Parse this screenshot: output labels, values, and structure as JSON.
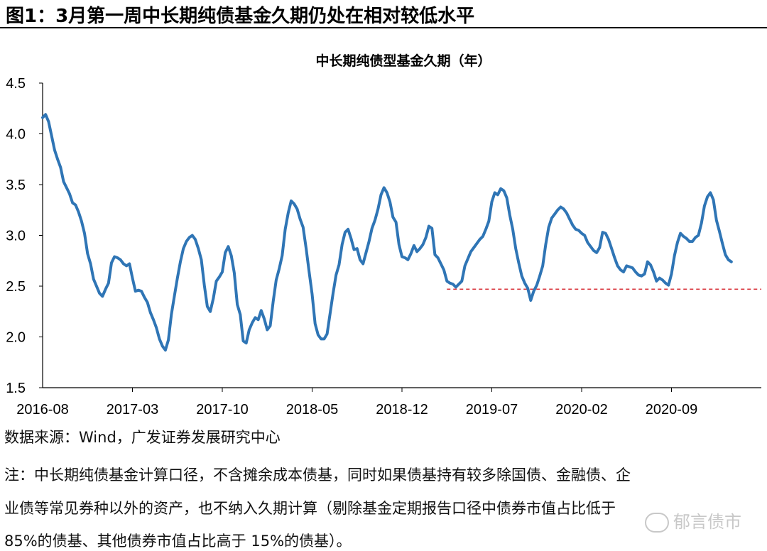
{
  "figure": {
    "title": "图1：3月第一周中长期纯债基金久期仍处在相对较低水平",
    "source": "数据来源：Wind，广发证券发展研究中心",
    "note_lines": [
      "注：中长期纯债基金计算口径，不含摊余成本债基，同时如果债基持有较多除国债、金融债、企",
      "业债等常见券种以外的资产，也不纳入久期计算（剔除基金定期报告口径中债券市值占比低于",
      "85%的债基、其他债券市值占比高于 15%的债基）。"
    ],
    "watermark": "郁言债市"
  },
  "chart_data": {
    "type": "line",
    "title": "中长期纯债型基金久期（年）",
    "xlabel": "",
    "ylabel": "",
    "ylim": [
      1.5,
      4.5
    ],
    "yticks": [
      "1.5",
      "2.0",
      "2.5",
      "3.0",
      "3.5",
      "4.0",
      "4.5"
    ],
    "x_tick_labels": [
      "2016-08",
      "2017-03",
      "2017-10",
      "2018-05",
      "2018-12",
      "2019-07",
      "2020-02",
      "2020-09"
    ],
    "x_range_weeks": [
      0,
      240
    ],
    "grid": false,
    "legend": "none",
    "series": [
      {
        "color": "#2f75b5",
        "points": [
          [
            0,
            4.16
          ],
          [
            1,
            4.19
          ],
          [
            2,
            4.12
          ],
          [
            3,
            3.98
          ],
          [
            4,
            3.84
          ],
          [
            5,
            3.75
          ],
          [
            6,
            3.67
          ],
          [
            7,
            3.53
          ],
          [
            8,
            3.47
          ],
          [
            9,
            3.41
          ],
          [
            10,
            3.32
          ],
          [
            11,
            3.3
          ],
          [
            12,
            3.23
          ],
          [
            13,
            3.14
          ],
          [
            14,
            3.02
          ],
          [
            15,
            2.82
          ],
          [
            16,
            2.72
          ],
          [
            17,
            2.57
          ],
          [
            18,
            2.5
          ],
          [
            19,
            2.43
          ],
          [
            20,
            2.4
          ],
          [
            21,
            2.47
          ],
          [
            22,
            2.53
          ],
          [
            23,
            2.73
          ],
          [
            24,
            2.79
          ],
          [
            25,
            2.78
          ],
          [
            26,
            2.76
          ],
          [
            27,
            2.72
          ],
          [
            28,
            2.7
          ],
          [
            29,
            2.72
          ],
          [
            30,
            2.58
          ],
          [
            31,
            2.45
          ],
          [
            32,
            2.46
          ],
          [
            33,
            2.45
          ],
          [
            34,
            2.39
          ],
          [
            35,
            2.34
          ],
          [
            36,
            2.24
          ],
          [
            37,
            2.17
          ],
          [
            38,
            2.09
          ],
          [
            39,
            1.98
          ],
          [
            40,
            1.91
          ],
          [
            41,
            1.87
          ],
          [
            42,
            1.97
          ],
          [
            43,
            2.22
          ],
          [
            44,
            2.4
          ],
          [
            45,
            2.58
          ],
          [
            46,
            2.74
          ],
          [
            47,
            2.87
          ],
          [
            48,
            2.94
          ],
          [
            49,
            2.98
          ],
          [
            50,
            3.0
          ],
          [
            51,
            2.96
          ],
          [
            52,
            2.87
          ],
          [
            53,
            2.76
          ],
          [
            54,
            2.51
          ],
          [
            55,
            2.3
          ],
          [
            56,
            2.25
          ],
          [
            57,
            2.38
          ],
          [
            58,
            2.55
          ],
          [
            59,
            2.59
          ],
          [
            60,
            2.64
          ],
          [
            61,
            2.83
          ],
          [
            62,
            2.89
          ],
          [
            63,
            2.8
          ],
          [
            64,
            2.63
          ],
          [
            65,
            2.32
          ],
          [
            66,
            2.22
          ],
          [
            67,
            1.96
          ],
          [
            68,
            1.94
          ],
          [
            69,
            2.07
          ],
          [
            70,
            2.14
          ],
          [
            71,
            2.19
          ],
          [
            72,
            2.17
          ],
          [
            73,
            2.26
          ],
          [
            74,
            2.18
          ],
          [
            75,
            2.07
          ],
          [
            76,
            2.11
          ],
          [
            77,
            2.35
          ],
          [
            78,
            2.56
          ],
          [
            79,
            2.67
          ],
          [
            80,
            2.8
          ],
          [
            81,
            3.06
          ],
          [
            82,
            3.22
          ],
          [
            83,
            3.34
          ],
          [
            84,
            3.31
          ],
          [
            85,
            3.26
          ],
          [
            86,
            3.16
          ],
          [
            87,
            3.08
          ],
          [
            88,
            2.87
          ],
          [
            89,
            2.64
          ],
          [
            90,
            2.42
          ],
          [
            91,
            2.13
          ],
          [
            92,
            2.02
          ],
          [
            93,
            1.98
          ],
          [
            94,
            1.98
          ],
          [
            95,
            2.03
          ],
          [
            96,
            2.23
          ],
          [
            97,
            2.43
          ],
          [
            98,
            2.61
          ],
          [
            99,
            2.71
          ],
          [
            100,
            2.91
          ],
          [
            101,
            3.03
          ],
          [
            102,
            3.06
          ],
          [
            103,
            2.97
          ],
          [
            104,
            2.86
          ],
          [
            105,
            2.87
          ],
          [
            106,
            2.76
          ],
          [
            107,
            2.72
          ],
          [
            108,
            2.83
          ],
          [
            109,
            2.94
          ],
          [
            110,
            3.07
          ],
          [
            111,
            3.15
          ],
          [
            112,
            3.26
          ],
          [
            113,
            3.4
          ],
          [
            114,
            3.47
          ],
          [
            115,
            3.42
          ],
          [
            116,
            3.33
          ],
          [
            117,
            3.18
          ],
          [
            118,
            3.13
          ],
          [
            119,
            2.91
          ],
          [
            120,
            2.79
          ],
          [
            121,
            2.78
          ],
          [
            122,
            2.76
          ],
          [
            123,
            2.82
          ],
          [
            124,
            2.9
          ],
          [
            125,
            2.84
          ],
          [
            126,
            2.87
          ],
          [
            127,
            2.91
          ],
          [
            128,
            2.98
          ],
          [
            129,
            3.09
          ],
          [
            130,
            3.07
          ],
          [
            131,
            2.81
          ],
          [
            132,
            2.78
          ],
          [
            133,
            2.72
          ],
          [
            134,
            2.66
          ],
          [
            135,
            2.55
          ],
          [
            136,
            2.53
          ],
          [
            137,
            2.52
          ],
          [
            138,
            2.49
          ],
          [
            139,
            2.52
          ],
          [
            140,
            2.55
          ],
          [
            141,
            2.7
          ],
          [
            142,
            2.77
          ],
          [
            143,
            2.84
          ],
          [
            144,
            2.88
          ],
          [
            145,
            2.92
          ],
          [
            146,
            2.96
          ],
          [
            147,
            2.99
          ],
          [
            148,
            3.06
          ],
          [
            149,
            3.14
          ],
          [
            150,
            3.33
          ],
          [
            151,
            3.42
          ],
          [
            152,
            3.4
          ],
          [
            153,
            3.46
          ],
          [
            154,
            3.44
          ],
          [
            155,
            3.37
          ],
          [
            156,
            3.2
          ],
          [
            157,
            3.06
          ],
          [
            158,
            2.87
          ],
          [
            159,
            2.73
          ],
          [
            160,
            2.6
          ],
          [
            161,
            2.53
          ],
          [
            162,
            2.48
          ],
          [
            163,
            2.36
          ],
          [
            164,
            2.45
          ],
          [
            165,
            2.51
          ],
          [
            166,
            2.6
          ],
          [
            167,
            2.7
          ],
          [
            168,
            2.91
          ],
          [
            169,
            3.08
          ],
          [
            170,
            3.17
          ],
          [
            171,
            3.21
          ],
          [
            172,
            3.25
          ],
          [
            173,
            3.28
          ],
          [
            174,
            3.26
          ],
          [
            175,
            3.22
          ],
          [
            176,
            3.16
          ],
          [
            177,
            3.1
          ],
          [
            178,
            3.06
          ],
          [
            179,
            3.05
          ],
          [
            180,
            3.02
          ],
          [
            181,
            3.0
          ],
          [
            182,
            2.93
          ],
          [
            183,
            2.89
          ],
          [
            184,
            2.85
          ],
          [
            185,
            2.83
          ],
          [
            186,
            2.88
          ],
          [
            187,
            3.03
          ],
          [
            188,
            3.02
          ],
          [
            189,
            2.96
          ],
          [
            190,
            2.87
          ],
          [
            191,
            2.78
          ],
          [
            192,
            2.7
          ],
          [
            193,
            2.66
          ],
          [
            194,
            2.64
          ],
          [
            195,
            2.7
          ],
          [
            196,
            2.69
          ],
          [
            197,
            2.68
          ],
          [
            198,
            2.64
          ],
          [
            199,
            2.61
          ],
          [
            200,
            2.6
          ],
          [
            201,
            2.62
          ],
          [
            202,
            2.74
          ],
          [
            203,
            2.71
          ],
          [
            204,
            2.64
          ],
          [
            205,
            2.55
          ],
          [
            206,
            2.58
          ],
          [
            207,
            2.56
          ],
          [
            208,
            2.53
          ],
          [
            209,
            2.51
          ],
          [
            210,
            2.62
          ],
          [
            211,
            2.8
          ],
          [
            212,
            2.93
          ],
          [
            213,
            3.02
          ],
          [
            214,
            2.99
          ],
          [
            215,
            2.97
          ],
          [
            216,
            2.94
          ],
          [
            217,
            2.94
          ],
          [
            218,
            2.98
          ],
          [
            219,
            3.0
          ],
          [
            220,
            3.12
          ],
          [
            221,
            3.29
          ],
          [
            222,
            3.38
          ],
          [
            223,
            3.42
          ],
          [
            224,
            3.35
          ],
          [
            225,
            3.15
          ],
          [
            226,
            3.04
          ],
          [
            227,
            2.92
          ],
          [
            228,
            2.81
          ],
          [
            229,
            2.76
          ],
          [
            230,
            2.74
          ]
        ]
      }
    ],
    "reference_line": {
      "y": 2.47,
      "x_from": 135,
      "x_to": 240,
      "color": "#d9363e",
      "style": "dashed"
    }
  }
}
